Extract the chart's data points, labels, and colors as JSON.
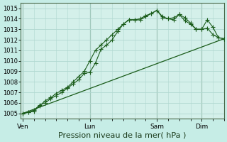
{
  "background_color": "#c6ede6",
  "grid_color": "#b0d8d0",
  "plot_bg": "#d4f0ea",
  "line_color": "#1a5c1a",
  "ylim": [
    1004.5,
    1015.5
  ],
  "yticks": [
    1005,
    1006,
    1007,
    1008,
    1009,
    1010,
    1011,
    1012,
    1013,
    1014,
    1015
  ],
  "xlabel": "Pression niveau de la mer( hPa )",
  "xlabel_fontsize": 8,
  "xtick_labels": [
    "Ven",
    "Lun",
    "Sam",
    "Dim"
  ],
  "xtick_positions": [
    0,
    36,
    72,
    96
  ],
  "xlim": [
    -1,
    108
  ],
  "num_points": 109,
  "line1_x": [
    0,
    3,
    6,
    9,
    12,
    15,
    18,
    21,
    24,
    27,
    30,
    33,
    36,
    39,
    42,
    45,
    48,
    51,
    54,
    57,
    60,
    63,
    66,
    69,
    72,
    75,
    78,
    81,
    84,
    87,
    90,
    93,
    96,
    99,
    102,
    105,
    108
  ],
  "line1_y": [
    1005.0,
    1005.1,
    1005.3,
    1005.8,
    1006.0,
    1006.4,
    1006.7,
    1007.0,
    1007.4,
    1007.8,
    1008.2,
    1008.8,
    1008.9,
    1009.8,
    1011.1,
    1011.5,
    1012.0,
    1012.8,
    1013.5,
    1013.9,
    1013.9,
    1013.9,
    1014.2,
    1014.5,
    1014.8,
    1014.1,
    1014.0,
    1014.1,
    1014.4,
    1013.8,
    1013.5,
    1013.0,
    1013.0,
    1013.9,
    1013.2,
    1012.2,
    1012.1
  ],
  "line2_x": [
    0,
    3,
    6,
    9,
    12,
    15,
    18,
    21,
    24,
    27,
    30,
    33,
    36,
    39,
    42,
    45,
    48,
    51,
    54,
    57,
    60,
    63,
    66,
    69,
    72,
    75,
    78,
    81,
    84,
    87,
    90,
    93,
    96,
    99,
    102,
    105,
    108
  ],
  "line2_y": [
    1005.0,
    1005.1,
    1005.2,
    1005.7,
    1006.2,
    1006.5,
    1006.9,
    1007.2,
    1007.5,
    1008.0,
    1008.5,
    1009.0,
    1010.0,
    1011.0,
    1011.5,
    1012.0,
    1012.5,
    1013.0,
    1013.5,
    1013.9,
    1013.9,
    1014.0,
    1014.3,
    1014.5,
    1014.8,
    1014.2,
    1014.0,
    1013.9,
    1014.4,
    1014.1,
    1013.6,
    1013.0,
    1013.0,
    1013.1,
    1012.5,
    1012.2,
    1012.1
  ],
  "line3_x": [
    0,
    108
  ],
  "line3_y": [
    1005.0,
    1012.1
  ],
  "vline_positions": [
    0,
    36,
    72,
    96
  ],
  "marker": "+",
  "markersize": 4,
  "linewidth1": 0.8,
  "linewidth2": 0.8,
  "linewidth3": 0.9
}
